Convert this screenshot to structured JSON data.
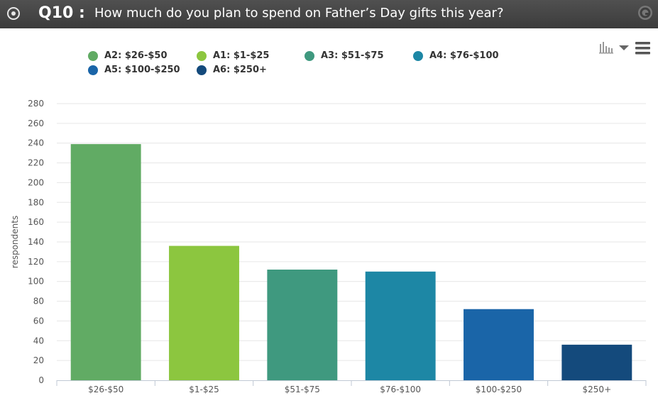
{
  "header": {
    "question_number": "Q10 :",
    "question_text": "How much do you plan to spend on Father’s Day gifts this year?"
  },
  "legend": [
    {
      "label": "A2: $26-$50",
      "color": "#61ab64"
    },
    {
      "label": "A1: $1-$25",
      "color": "#8cc63f"
    },
    {
      "label": "A3: $51-$75",
      "color": "#3f997f"
    },
    {
      "label": "A4: $76-$100",
      "color": "#1d87a5"
    },
    {
      "label": "A5: $100-$250",
      "color": "#1a65a8"
    },
    {
      "label": "A6: $250+",
      "color": "#144a7c"
    }
  ],
  "chart_data": {
    "type": "bar",
    "title": "How much do you plan to spend on Father’s Day gifts this year?",
    "categories": [
      "$26-$50",
      "$1-$25",
      "$51-$75",
      "$76-$100",
      "$100-$250",
      "$250+"
    ],
    "values": [
      239,
      136,
      112,
      110,
      72,
      36
    ],
    "colors": [
      "#61ab64",
      "#8cc63f",
      "#3f997f",
      "#1d87a5",
      "#1a65a8",
      "#144a7c"
    ],
    "xlabel": "",
    "ylabel": "respondents",
    "ylim": [
      0,
      280
    ],
    "yticks": [
      0,
      20,
      40,
      60,
      80,
      100,
      120,
      140,
      160,
      180,
      200,
      220,
      240,
      260,
      280
    ],
    "grid": true,
    "legend_position": "top"
  }
}
